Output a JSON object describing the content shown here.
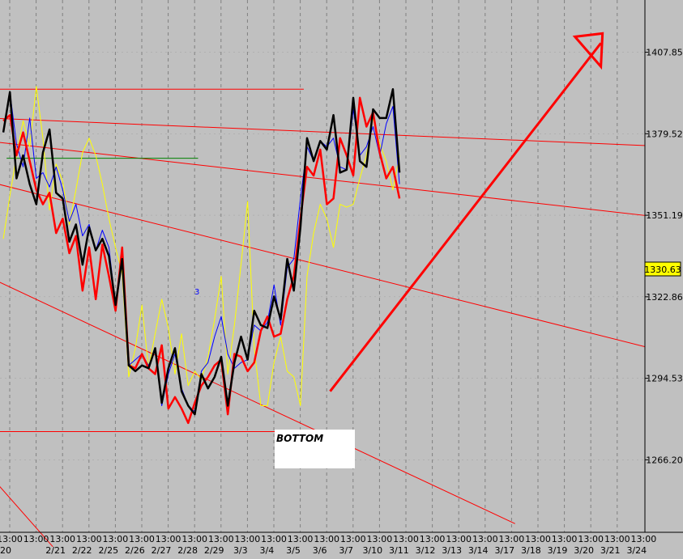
{
  "chart_data": {
    "type": "line",
    "title": "",
    "xlabel": "",
    "ylabel": "",
    "y_axis_side": "right",
    "ylim": [
      1241,
      1426
    ],
    "grid": true,
    "background": "#c0c0c0",
    "time_labels": [
      "13:00",
      "13:00",
      "13:00",
      "13:00",
      "13:00",
      "13:00",
      "13:00",
      "13:00",
      "13:00",
      "13:00",
      "13:00",
      "13:00",
      "13:00",
      "13:00",
      "13:00",
      "13:00",
      "13:00",
      "13:00",
      "13:00",
      "13:00",
      "13:00",
      "13:00",
      "13:00",
      "13:00",
      "13:00"
    ],
    "date_labels": [
      "20",
      "2/21",
      "2/22",
      "2/25",
      "2/26",
      "2/27",
      "2/28",
      "2/29",
      "3/3",
      "3/4",
      "3/5",
      "3/6",
      "3/7",
      "3/10",
      "3/11",
      "3/12",
      "3/13",
      "3/14",
      "3/17",
      "3/18",
      "3/19",
      "3/20",
      "3/21",
      "3/24"
    ],
    "y_ticks": [
      1407.85,
      1379.52,
      1351.19,
      1322.86,
      1294.53,
      1266.2
    ],
    "current_price": "1330.63",
    "current_price_color": "#ffff00",
    "annotations": [
      {
        "text": "BOTTOM",
        "at": "3/6"
      },
      {
        "text": "3",
        "at": "2/29"
      }
    ],
    "series": [
      {
        "color": "#000000",
        "values": [
          1380,
          1394,
          1364,
          1372,
          1362,
          1355,
          1373,
          1381,
          1359,
          1357,
          1342,
          1348,
          1334,
          1347,
          1339,
          1343,
          1337,
          1320,
          1336,
          1299,
          1297,
          1299,
          1298,
          1305,
          1286,
          1298,
          1305,
          1290,
          1285,
          1282,
          1296,
          1291,
          1295,
          1302,
          1285,
          1300,
          1309,
          1301,
          1318,
          1313,
          1312,
          1323,
          1315,
          1336,
          1325,
          1347,
          1378,
          1370,
          1377,
          1374,
          1386,
          1366,
          1367,
          1392,
          1370,
          1368,
          1388,
          1385,
          1385,
          1395,
          1366
        ]
      },
      {
        "color": "#ff0000",
        "values": [
          1384,
          1386,
          1372,
          1380,
          1370,
          1360,
          1355,
          1359,
          1345,
          1350,
          1338,
          1344,
          1325,
          1340,
          1322,
          1341,
          1330,
          1318,
          1340,
          1299,
          1298,
          1303,
          1298,
          1296,
          1306,
          1284,
          1288,
          1284,
          1279,
          1286,
          1292,
          1295,
          1299,
          1301,
          1282,
          1303,
          1302,
          1297,
          1300,
          1311,
          1316,
          1309,
          1310,
          1322,
          1330,
          1350,
          1368,
          1365,
          1374,
          1355,
          1357,
          1378,
          1372,
          1365,
          1392,
          1382,
          1387,
          1373,
          1364,
          1368,
          1357
        ]
      },
      {
        "color": "#0000ff",
        "values": [
          1380,
          1394,
          1376,
          1368,
          1385,
          1364,
          1366,
          1361,
          1368,
          1360,
          1349,
          1355,
          1344,
          1348,
          1339,
          1346,
          1340,
          1320,
          1337,
          1299,
          1301,
          1303,
          1299,
          1304,
          1285,
          1296,
          1303,
          1291,
          1285,
          1283,
          1297,
          1300,
          1309,
          1316,
          1303,
          1298,
          1300,
          1301,
          1313,
          1311,
          1314,
          1327,
          1313,
          1333,
          1336,
          1357,
          1375,
          1370,
          1377,
          1375,
          1378,
          1368,
          1367,
          1388,
          1372,
          1375,
          1382,
          1372,
          1383,
          1389,
          1362
        ]
      },
      {
        "color": "#ffff00",
        "values": [
          1343,
          1358,
          1372,
          1384,
          1375,
          1396,
          1378,
          1353,
          1369,
          1363,
          1348,
          1360,
          1373,
          1378,
          1372,
          1362,
          1350,
          1340,
          1331,
          1295,
          1305,
          1320,
          1298,
          1310,
          1322,
          1312,
          1296,
          1310,
          1292,
          1297,
          1294,
          1302,
          1315,
          1330,
          1296,
          1313,
          1334,
          1356,
          1305,
          1285,
          1285,
          1300,
          1309,
          1297,
          1295,
          1285,
          1330,
          1345,
          1355,
          1350,
          1340,
          1355,
          1354,
          1355,
          1364,
          1372,
          1385,
          1376,
          1370,
          1360,
          1372
        ]
      }
    ],
    "trend_lines": [
      {
        "color": "#ff0000",
        "from": [
          -2,
          1395
        ],
        "to": [
          46,
          1395
        ]
      },
      {
        "color": "#ff0000",
        "from": [
          -2,
          1385
        ],
        "to": [
          102,
          1375
        ]
      },
      {
        "color": "#ff0000",
        "from": [
          -2,
          1377
        ],
        "to": [
          102,
          1350
        ]
      },
      {
        "color": "#ff0000",
        "from": [
          -2,
          1363
        ],
        "to": [
          102,
          1303
        ]
      },
      {
        "color": "#ff0000",
        "from": [
          -2,
          1276
        ],
        "to": [
          46,
          1276
        ]
      },
      {
        "color": "#ff0000",
        "from": [
          -2,
          1330
        ],
        "to": [
          78,
          1244
        ]
      },
      {
        "color": "#ff0000",
        "from": [
          -2,
          1262
        ],
        "to": [
          8,
          1236
        ]
      },
      {
        "color": "#008000",
        "from": [
          1,
          1371
        ],
        "to": [
          30,
          1371
        ]
      }
    ],
    "arrow": {
      "color": "#ff0000",
      "from": [
        50,
        1290
      ],
      "to": [
        91,
        1411
      ]
    }
  }
}
